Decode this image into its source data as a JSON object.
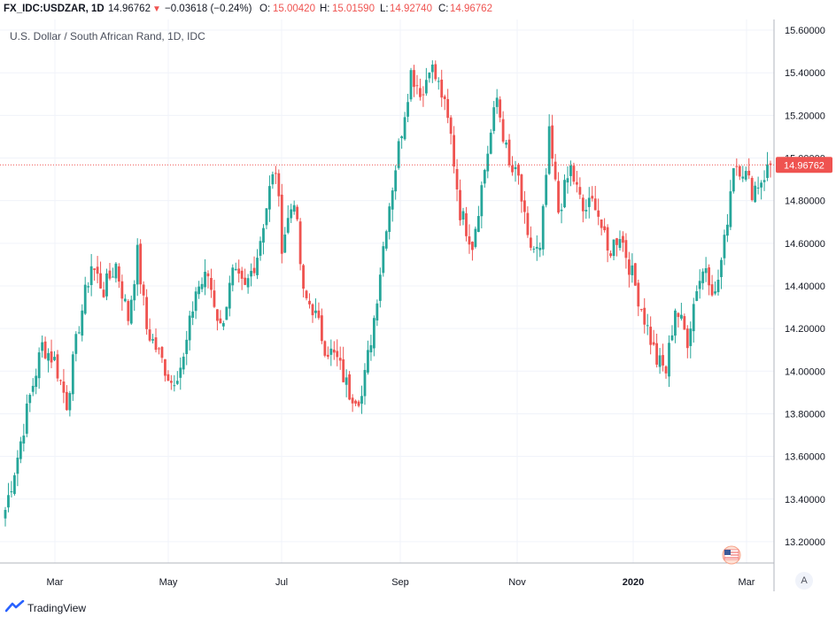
{
  "header": {
    "symbol": "FX_IDC:USDZAR, 1D",
    "last": "14.96762",
    "change": "−0.03618 (−0.24%)",
    "open_label": "O:",
    "open": "15.00420",
    "high_label": "H:",
    "high": "15.01590",
    "low_label": "L:",
    "low": "14.92740",
    "close_label": "C:",
    "close": "14.96762"
  },
  "chart_title": "U.S. Dollar / South African Rand, 1D, IDC",
  "price_tag": "14.96762",
  "auto_scale_button": "A",
  "footer": {
    "brand": "TradingView"
  },
  "colors": {
    "up": "#26a69a",
    "down": "#ef5350",
    "grid": "#f0f3fa",
    "last_line": "#ef5350"
  },
  "chart_data": {
    "type": "candlestick",
    "title": "U.S. Dollar / South African Rand, 1D, IDC",
    "ylim": [
      13.1,
      15.65
    ],
    "y_ticks": [
      "13.20000",
      "13.40000",
      "13.60000",
      "13.80000",
      "14.00000",
      "14.20000",
      "14.40000",
      "14.60000",
      "14.80000",
      "15.00000",
      "15.20000",
      "15.40000",
      "15.60000"
    ],
    "x_ticks": [
      "Mar",
      "May",
      "Jul",
      "Sep",
      "Nov",
      "2020",
      "Mar"
    ],
    "last_close": 14.96762,
    "anchors": [
      [
        0,
        13.35
      ],
      [
        4,
        13.6
      ],
      [
        8,
        13.88
      ],
      [
        12,
        14.12
      ],
      [
        16,
        14.05
      ],
      [
        20,
        13.85
      ],
      [
        24,
        14.22
      ],
      [
        28,
        14.5
      ],
      [
        32,
        14.38
      ],
      [
        36,
        14.5
      ],
      [
        40,
        14.25
      ],
      [
        43,
        14.55
      ],
      [
        46,
        14.2
      ],
      [
        50,
        14.08
      ],
      [
        54,
        13.95
      ],
      [
        58,
        14.05
      ],
      [
        62,
        14.38
      ],
      [
        66,
        14.45
      ],
      [
        70,
        14.2
      ],
      [
        74,
        14.45
      ],
      [
        78,
        14.38
      ],
      [
        82,
        14.55
      ],
      [
        86,
        14.85
      ],
      [
        88,
        14.95
      ],
      [
        90,
        14.6
      ],
      [
        94,
        14.82
      ],
      [
        97,
        14.35
      ],
      [
        100,
        14.3
      ],
      [
        104,
        14.12
      ],
      [
        108,
        14.05
      ],
      [
        112,
        13.9
      ],
      [
        116,
        13.88
      ],
      [
        120,
        14.25
      ],
      [
        124,
        14.7
      ],
      [
        128,
        15.05
      ],
      [
        132,
        15.4
      ],
      [
        136,
        15.3
      ],
      [
        138,
        15.45
      ],
      [
        142,
        15.3
      ],
      [
        145,
        15.1
      ],
      [
        148,
        14.75
      ],
      [
        152,
        14.6
      ],
      [
        156,
        14.95
      ],
      [
        160,
        15.28
      ],
      [
        164,
        14.95
      ],
      [
        167,
        14.9
      ],
      [
        170,
        14.6
      ],
      [
        174,
        14.55
      ],
      [
        177,
        15.1
      ],
      [
        180,
        14.75
      ],
      [
        184,
        14.95
      ],
      [
        188,
        14.75
      ],
      [
        192,
        14.8
      ],
      [
        196,
        14.55
      ],
      [
        200,
        14.65
      ],
      [
        204,
        14.45
      ],
      [
        208,
        14.25
      ],
      [
        212,
        14.05
      ],
      [
        215,
        14.0
      ],
      [
        218,
        14.3
      ],
      [
        222,
        14.15
      ],
      [
        225,
        14.4
      ],
      [
        228,
        14.5
      ],
      [
        231,
        14.35
      ],
      [
        234,
        14.6
      ],
      [
        237,
        14.98
      ],
      [
        240,
        14.95
      ],
      [
        243,
        14.85
      ],
      [
        246,
        14.9
      ],
      [
        249,
        14.97
      ]
    ]
  }
}
